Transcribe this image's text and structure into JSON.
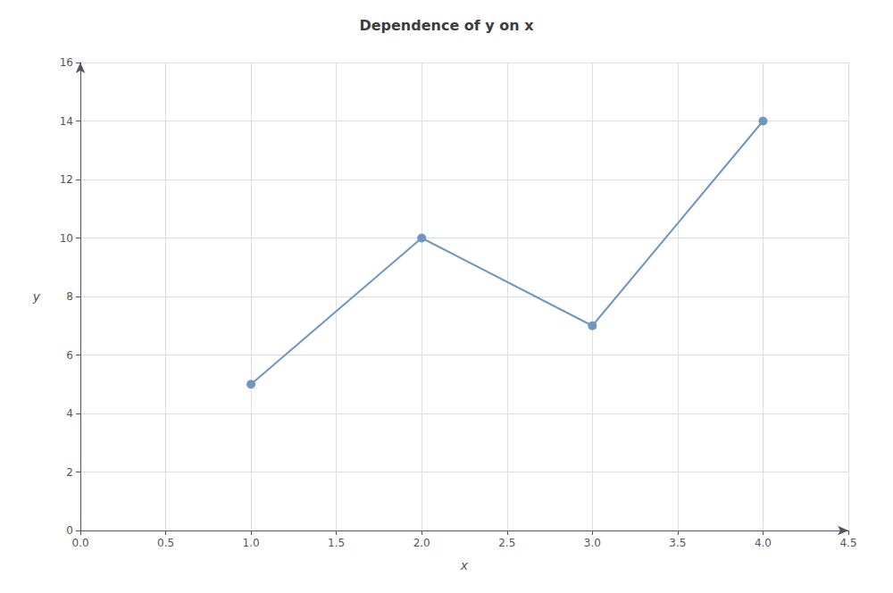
{
  "chart_data": {
    "type": "line",
    "title": "Dependence of y on x",
    "xlabel": "x",
    "ylabel": "y",
    "x": [
      1,
      2,
      3,
      4
    ],
    "values": [
      5,
      10,
      7,
      14
    ],
    "color": "#7096bf",
    "marker": "circle",
    "xlim": [
      0,
      4.5
    ],
    "xticks": [
      {
        "value": 0,
        "label": "0.0"
      },
      0.5,
      {
        "value": 1,
        "label": "1.0"
      },
      1.5,
      {
        "value": 2,
        "label": "2.0"
      },
      2.5,
      {
        "value": 3,
        "label": "3.0"
      },
      3.5,
      {
        "value": 4,
        "label": "4.0"
      },
      4.5
    ],
    "ylim": [
      0,
      16
    ],
    "yticks": [
      0,
      2,
      4,
      6,
      8,
      10,
      12,
      14,
      16
    ],
    "grid": true
  }
}
